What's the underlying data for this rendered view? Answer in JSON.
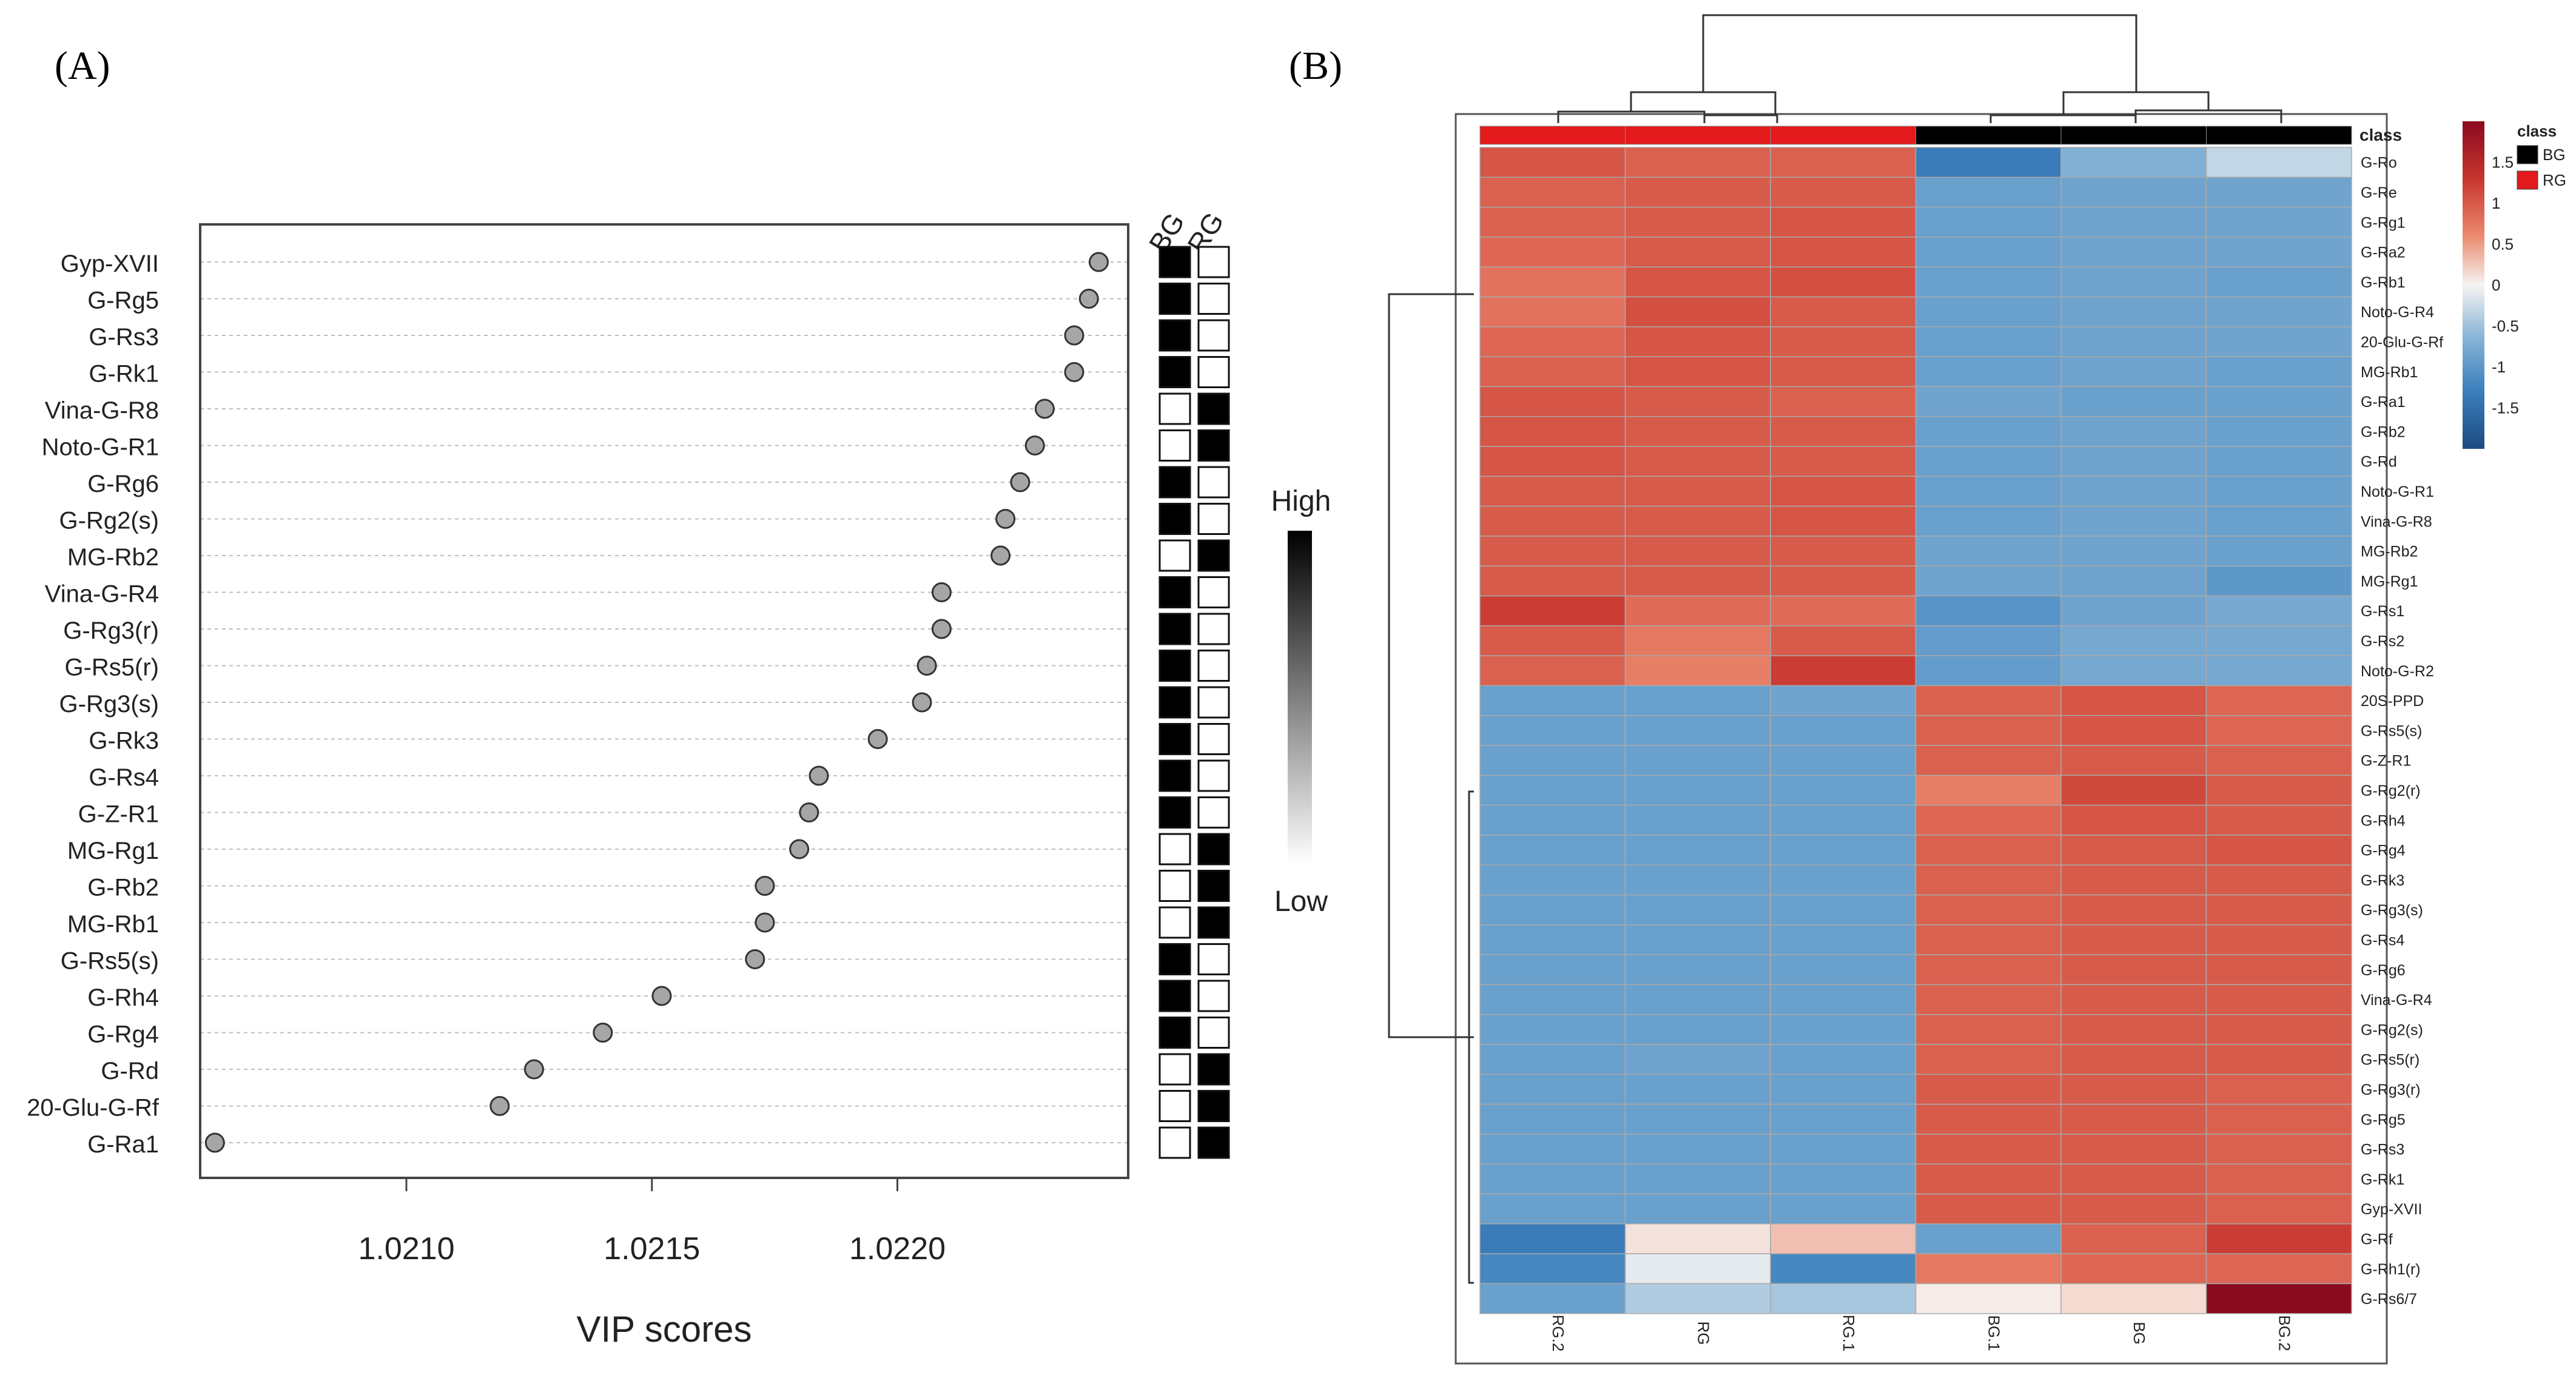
{
  "panel_a": {
    "label": "(A)",
    "chart_data": {
      "type": "scatter",
      "subtype": "vip-dot-plot",
      "xlabel": "VIP scores",
      "xlim": [
        1.02058,
        1.02247
      ],
      "xticks": [
        1.021,
        1.0215,
        1.022
      ],
      "xtick_labels": [
        "1.0210",
        "1.0215",
        "1.0220"
      ],
      "compounds": [
        "Gyp-XVII",
        "G-Rg5",
        "G-Rs3",
        "G-Rk1",
        "Vina-G-R8",
        "Noto-G-R1",
        "G-Rg6",
        "G-Rg2(s)",
        "MG-Rb2",
        "Vina-G-R4",
        "G-Rg3(r)",
        "G-Rs5(r)",
        "G-Rg3(s)",
        "G-Rk3",
        "G-Rs4",
        "G-Z-R1",
        "MG-Rg1",
        "G-Rb2",
        "MG-Rb1",
        "G-Rs5(s)",
        "G-Rh4",
        "G-Rg4",
        "G-Rd",
        "20-Glu-G-Rf",
        "G-Ra1"
      ],
      "vip": [
        1.02241,
        1.02239,
        1.02236,
        1.02236,
        1.0223,
        1.02228,
        1.02225,
        1.02222,
        1.02221,
        1.02209,
        1.02209,
        1.02206,
        1.02205,
        1.02196,
        1.02184,
        1.02182,
        1.0218,
        1.02173,
        1.02173,
        1.02171,
        1.02152,
        1.0214,
        1.02126,
        1.02119,
        1.02061
      ],
      "group_columns": [
        "BG",
        "RG"
      ],
      "group_high": [
        "BG",
        "BG",
        "BG",
        "BG",
        "RG",
        "RG",
        "BG",
        "BG",
        "RG",
        "BG",
        "BG",
        "BG",
        "BG",
        "BG",
        "BG",
        "BG",
        "RG",
        "RG",
        "RG",
        "BG",
        "BG",
        "BG",
        "RG",
        "RG",
        "RG"
      ],
      "legend": {
        "high": "High",
        "low": "Low"
      }
    }
  },
  "panel_b": {
    "label": "(B)",
    "chart_data": {
      "type": "heatmap",
      "columns": [
        "RG.2",
        "RG",
        "RG.1",
        "BG.1",
        "BG",
        "BG.2"
      ],
      "column_class": [
        "RG",
        "RG",
        "RG",
        "BG",
        "BG",
        "BG"
      ],
      "class_row_label": "class",
      "class_legend": {
        "title": "class",
        "items": [
          "BG",
          "RG"
        ],
        "colors": {
          "BG": "#000000",
          "RG": "#e31a1c"
        }
      },
      "color_scale": {
        "min": -2,
        "max": 2,
        "low": "#2c5f9a",
        "mid": "#f6f4f2",
        "high": "#8a0a1f",
        "tick_values": [
          1.5,
          1,
          0.5,
          0,
          -0.5,
          -1,
          -1.5
        ],
        "tick_labels": [
          "1.5",
          "1",
          "0.5",
          "0",
          "-0.5",
          "-1",
          "-1.5"
        ]
      },
      "rows": [
        "G-Ro",
        "G-Re",
        "G-Rg1",
        "G-Ra2",
        "G-Rb1",
        "Noto-G-R4",
        "20-Glu-G-Rf",
        "MG-Rb1",
        "G-Ra1",
        "G-Rb2",
        "G-Rd",
        "Noto-G-R1",
        "Vina-G-R8",
        "MG-Rb2",
        "MG-Rg1",
        "G-Rs1",
        "G-Rs2",
        "Noto-G-R2",
        "20S-PPD",
        "G-Rs5(s)",
        "G-Z-R1",
        "G-Rg2(r)",
        "G-Rh4",
        "G-Rg4",
        "G-Rk3",
        "G-Rg3(s)",
        "G-Rs4",
        "G-Rg6",
        "Vina-G-R4",
        "G-Rg2(s)",
        "G-Rs5(r)",
        "G-Rg3(r)",
        "G-Rg5",
        "G-Rs3",
        "G-Rk1",
        "Gyp-XVII",
        "G-Rf",
        "G-Rh1(r)",
        "G-Rs6/7"
      ],
      "values": [
        [
          1.05,
          0.95,
          0.95,
          -1.35,
          -0.7,
          -0.3
        ],
        [
          0.95,
          1.0,
          1.0,
          -0.9,
          -0.85,
          -0.85
        ],
        [
          0.95,
          1.0,
          1.05,
          -0.9,
          -0.85,
          -0.85
        ],
        [
          0.9,
          1.0,
          1.05,
          -0.9,
          -0.85,
          -0.85
        ],
        [
          0.8,
          1.05,
          1.1,
          -0.9,
          -0.85,
          -0.9
        ],
        [
          0.8,
          1.1,
          1.0,
          -0.9,
          -0.85,
          -0.85
        ],
        [
          0.9,
          1.05,
          1.0,
          -0.9,
          -0.85,
          -0.85
        ],
        [
          0.95,
          1.05,
          1.0,
          -0.9,
          -0.85,
          -0.9
        ],
        [
          1.05,
          1.0,
          0.95,
          -0.85,
          -0.9,
          -0.9
        ],
        [
          1.05,
          1.0,
          1.0,
          -0.9,
          -0.85,
          -0.9
        ],
        [
          1.05,
          1.0,
          1.0,
          -0.9,
          -0.85,
          -0.9
        ],
        [
          1.0,
          1.0,
          1.05,
          -0.9,
          -0.85,
          -0.9
        ],
        [
          1.0,
          1.0,
          1.05,
          -0.9,
          -0.85,
          -0.9
        ],
        [
          1.0,
          1.0,
          1.0,
          -0.85,
          -0.85,
          -0.9
        ],
        [
          1.0,
          1.0,
          1.0,
          -0.85,
          -0.85,
          -1.0
        ],
        [
          1.25,
          0.85,
          0.85,
          -1.05,
          -0.85,
          -0.8
        ],
        [
          1.0,
          0.75,
          1.0,
          -0.95,
          -0.8,
          -0.8
        ],
        [
          0.95,
          0.7,
          1.25,
          -0.95,
          -0.8,
          -0.8
        ],
        [
          -0.9,
          -0.9,
          -0.85,
          0.95,
          1.05,
          0.9
        ],
        [
          -0.9,
          -0.9,
          -0.9,
          0.95,
          1.05,
          0.9
        ],
        [
          -0.9,
          -0.9,
          -0.9,
          0.95,
          1.0,
          0.95
        ],
        [
          -0.9,
          -0.9,
          -0.9,
          0.7,
          1.15,
          1.0
        ],
        [
          -0.9,
          -0.9,
          -0.9,
          0.9,
          1.05,
          1.0
        ],
        [
          -0.9,
          -0.9,
          -0.9,
          0.95,
          1.0,
          1.05
        ],
        [
          -0.9,
          -0.9,
          -0.9,
          0.95,
          1.0,
          1.0
        ],
        [
          -0.9,
          -0.9,
          -0.9,
          0.95,
          1.0,
          1.0
        ],
        [
          -0.9,
          -0.9,
          -0.9,
          0.95,
          1.0,
          1.0
        ],
        [
          -0.9,
          -0.9,
          -0.9,
          0.95,
          1.0,
          1.0
        ],
        [
          -0.9,
          -0.9,
          -0.9,
          0.95,
          1.0,
          1.0
        ],
        [
          -0.9,
          -0.9,
          -0.9,
          0.95,
          1.0,
          1.0
        ],
        [
          -0.9,
          -0.85,
          -0.9,
          0.95,
          1.0,
          1.0
        ],
        [
          -0.9,
          -0.9,
          -0.9,
          1.0,
          1.0,
          0.95
        ],
        [
          -0.9,
          -0.9,
          -0.9,
          1.0,
          1.0,
          0.95
        ],
        [
          -0.9,
          -0.9,
          -0.9,
          1.0,
          1.0,
          0.95
        ],
        [
          -0.9,
          -0.9,
          -0.9,
          1.0,
          1.0,
          0.95
        ],
        [
          -0.9,
          -0.9,
          -0.9,
          1.0,
          1.0,
          0.95
        ],
        [
          -1.35,
          0.1,
          0.3,
          -0.9,
          0.95,
          1.25
        ],
        [
          -1.2,
          -0.1,
          -1.2,
          0.75,
          0.9,
          0.9
        ],
        [
          -0.9,
          -0.4,
          -0.45,
          0.05,
          0.15,
          2.0
        ]
      ]
    }
  }
}
